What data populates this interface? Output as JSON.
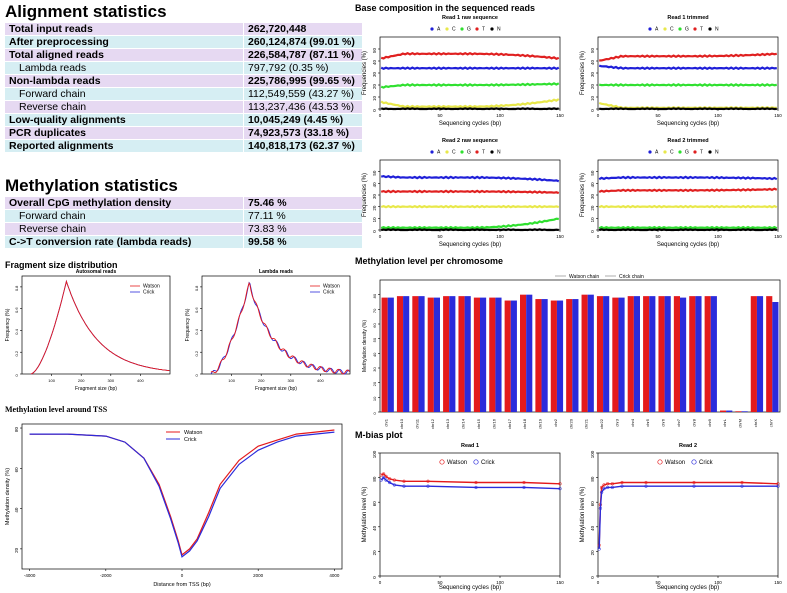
{
  "alignment": {
    "title": "Alignment statistics",
    "rows": [
      {
        "label": "Total input reads",
        "value": "262,720,448",
        "bold": true,
        "sub": false
      },
      {
        "label": "After preprocessing",
        "value": "260,124,874 (99.01 %)",
        "bold": true,
        "sub": false
      },
      {
        "label": "Total aligned reads",
        "value": "226,584,787 (87.11 %)",
        "bold": true,
        "sub": false
      },
      {
        "label": "Lambda reads",
        "value": "797,792 (0.35 %)",
        "bold": false,
        "sub": true
      },
      {
        "label": "Non-lambda reads",
        "value": "225,786,995 (99.65 %)",
        "bold": true,
        "sub": false
      },
      {
        "label": "Forward chain",
        "value": "112,549,559 (43.27 %)",
        "bold": false,
        "sub": true
      },
      {
        "label": "Reverse chain",
        "value": "113,237,436 (43.53 %)",
        "bold": false,
        "sub": true
      },
      {
        "label": "Low-quality alignments",
        "value": "10,045,249 (4.45 %)",
        "bold": true,
        "sub": false
      },
      {
        "label": "PCR duplicates",
        "value": "74,923,573 (33.18 %)",
        "bold": true,
        "sub": false
      },
      {
        "label": "Reported alignments",
        "value": "140,818,173 (62.37 %)",
        "bold": true,
        "sub": false
      }
    ]
  },
  "methylation": {
    "title": "Methylation statistics",
    "rows": [
      {
        "label": "Overall CpG methylation density",
        "value": "75.46 %",
        "bold": true,
        "sub": false
      },
      {
        "label": "Forward chain",
        "value": "77.11 %",
        "bold": false,
        "sub": true
      },
      {
        "label": "Reverse chain",
        "value": "73.83 %",
        "bold": false,
        "sub": true
      },
      {
        "label": "C->T conversion rate (lambda reads)",
        "value": "99.58 %",
        "bold": true,
        "sub": false
      }
    ]
  },
  "colors": {
    "watson": "#e41a1c",
    "crick": "#2b2bdb",
    "A": "#1f1fd8",
    "C": "#e8e84a",
    "G": "#2fe02f",
    "T": "#e02020",
    "N": "#000000",
    "row_purple": "#e6d9f2",
    "row_cyan": "#d6eef3"
  },
  "chart_data": [
    {
      "id": "base_composition",
      "type": "line",
      "title": "Base composition in the sequenced reads",
      "legend": [
        "A",
        "C",
        "G",
        "T",
        "N"
      ],
      "xlabel": "Sequencing cycles (bp)",
      "ylabel": "Frequencies (%)",
      "xlim": [
        0,
        150
      ],
      "ylim": [
        0,
        60
      ],
      "xticks": [
        0,
        50,
        100,
        150
      ],
      "yticks": [
        0,
        10,
        20,
        30,
        40,
        50
      ],
      "panels": [
        {
          "title": "Read 1 raw sequence",
          "series": [
            {
              "name": "A",
              "start": 34,
              "mid": 34,
              "end": 34
            },
            {
              "name": "C",
              "start": 6,
              "mid": 2,
              "end": 8
            },
            {
              "name": "G",
              "start": 18,
              "mid": 20,
              "end": 21
            },
            {
              "name": "T",
              "start": 42,
              "mid": 46,
              "end": 42
            },
            {
              "name": "N",
              "start": 0,
              "mid": 0,
              "end": 0
            }
          ]
        },
        {
          "title": "Read 1 trimmed",
          "series": [
            {
              "name": "A",
              "start": 36,
              "mid": 34,
              "end": 34
            },
            {
              "name": "C",
              "start": 5,
              "mid": 1,
              "end": 1
            },
            {
              "name": "G",
              "start": 20,
              "mid": 20,
              "end": 20
            },
            {
              "name": "T",
              "start": 40,
              "mid": 44,
              "end": 46
            },
            {
              "name": "N",
              "start": 0,
              "mid": 0,
              "end": 0
            }
          ]
        },
        {
          "title": "Read 2 raw sequence",
          "series": [
            {
              "name": "A",
              "start": 46,
              "mid": 45,
              "end": 42
            },
            {
              "name": "C",
              "start": 20,
              "mid": 20,
              "end": 20
            },
            {
              "name": "G",
              "start": 2,
              "mid": 2,
              "end": 10
            },
            {
              "name": "T",
              "start": 33,
              "mid": 33,
              "end": 32
            },
            {
              "name": "N",
              "start": 0,
              "mid": 0,
              "end": 0
            }
          ]
        },
        {
          "title": "Read 2 trimmed",
          "series": [
            {
              "name": "A",
              "start": 44,
              "mid": 45,
              "end": 44
            },
            {
              "name": "C",
              "start": 20,
              "mid": 20,
              "end": 20
            },
            {
              "name": "G",
              "start": 2,
              "mid": 2,
              "end": 2
            },
            {
              "name": "T",
              "start": 33,
              "mid": 34,
              "end": 35
            },
            {
              "name": "N",
              "start": 0,
              "mid": 0,
              "end": 0
            }
          ]
        }
      ]
    },
    {
      "id": "fragment_size",
      "type": "line",
      "title": "Fragment size distribution",
      "xlabel": "Fragment size (bp)",
      "ylabel": "Frequency (%)",
      "legend": [
        "Watson",
        "Crick"
      ],
      "panels": [
        {
          "title": "Autosomal reads",
          "xlim": [
            0,
            500
          ],
          "ylim": [
            0,
            0.9
          ],
          "xticks": [
            100,
            200,
            300,
            400
          ],
          "yticks": [
            0.0,
            0.2,
            0.4,
            0.6,
            0.8
          ],
          "peak_x": 150,
          "peak_y": 0.85
        },
        {
          "title": "Lambda reads",
          "xlim": [
            0,
            500
          ],
          "ylim": [
            0,
            0.9
          ],
          "xticks": [
            100,
            200,
            300,
            400
          ],
          "yticks": [
            0.0,
            0.2,
            0.4,
            0.6,
            0.8
          ],
          "peak_x": 160,
          "peak_y": 0.83
        }
      ]
    },
    {
      "id": "tss",
      "type": "line",
      "title": "Methylation level around TSS",
      "xlabel": "Distance from TSS (bp)",
      "ylabel": "Methylation density (%)",
      "legend": [
        "Watson",
        "Crick"
      ],
      "xlim": [
        -4200,
        4200
      ],
      "ylim": [
        10,
        82
      ],
      "xticks": [
        -4000,
        -2000,
        0,
        2000,
        4000
      ],
      "yticks": [
        20,
        40,
        60,
        80
      ],
      "series": [
        {
          "name": "Watson",
          "x": [
            -4000,
            -3000,
            -2000,
            -1500,
            -1000,
            -600,
            -300,
            -100,
            0,
            200,
            400,
            700,
            1000,
            1500,
            2000,
            2500,
            3000,
            3500,
            4000
          ],
          "y": [
            77,
            77,
            76,
            73,
            65,
            52,
            36,
            24,
            17,
            20,
            25,
            38,
            52,
            64,
            71,
            74,
            77,
            78,
            79
          ]
        },
        {
          "name": "Crick",
          "x": [
            -4000,
            -3000,
            -2000,
            -1500,
            -1000,
            -600,
            -300,
            -100,
            0,
            200,
            400,
            700,
            1000,
            1500,
            2000,
            2500,
            3000,
            3500,
            4000
          ],
          "y": [
            77,
            77,
            76,
            73,
            65,
            51,
            35,
            23,
            16,
            19,
            24,
            36,
            50,
            62,
            69,
            73,
            76,
            77,
            78
          ]
        }
      ]
    },
    {
      "id": "chromosome",
      "type": "bar",
      "title": "Methylation level per chromosome",
      "legend": [
        "Watson chain",
        "Crick chain"
      ],
      "ylabel": "Methylation density (%)",
      "ylim": [
        0,
        90
      ],
      "yticks": [
        0,
        10,
        20,
        30,
        40,
        50,
        60,
        70,
        80
      ],
      "categories": [
        "chr1",
        "chr10",
        "chr11",
        "chr12",
        "chr13",
        "chr14",
        "chr15",
        "chr16",
        "chr17",
        "chr18",
        "chr19",
        "chr2",
        "chr20",
        "chr21",
        "chr22",
        "chr3",
        "chr4",
        "chr5",
        "chr6",
        "chr7",
        "chr8",
        "chr9",
        "chrL",
        "chrM",
        "chrX",
        "chrY"
      ],
      "series": [
        {
          "name": "Watson chain",
          "values": [
            78,
            79,
            79,
            78,
            79,
            79,
            78,
            78,
            76,
            80,
            77,
            76,
            77,
            80,
            79,
            78,
            79,
            79,
            79,
            79,
            79,
            79,
            1,
            0.5,
            79,
            79
          ]
        },
        {
          "name": "Crick chain",
          "values": [
            78,
            79,
            79,
            78,
            79,
            79,
            78,
            78,
            76,
            80,
            77,
            76,
            77,
            80,
            79,
            78,
            79,
            79,
            79,
            78,
            79,
            79,
            1,
            0.5,
            79,
            75
          ]
        }
      ]
    },
    {
      "id": "mbias",
      "type": "line",
      "title": "M-bias plot",
      "legend": [
        "Watson",
        "Crick"
      ],
      "xlabel": "Sequencing cycles (bp)",
      "ylabel": "Methylation level (%)",
      "xlim": [
        0,
        150
      ],
      "ylim": [
        0,
        100
      ],
      "xticks": [
        0,
        50,
        100,
        150
      ],
      "yticks": [
        0,
        20,
        40,
        60,
        80,
        100
      ],
      "panels": [
        {
          "title": "Read 1",
          "series": [
            {
              "name": "Watson",
              "x": [
                1,
                3,
                5,
                8,
                12,
                20,
                40,
                80,
                120,
                150
              ],
              "y": [
                82,
                83,
                81,
                79,
                78,
                77,
                77,
                76,
                76,
                75
              ]
            },
            {
              "name": "Crick",
              "x": [
                1,
                3,
                5,
                8,
                12,
                20,
                40,
                80,
                120,
                150
              ],
              "y": [
                78,
                80,
                78,
                76,
                74,
                73,
                73,
                72,
                72,
                71
              ]
            }
          ]
        },
        {
          "title": "Read 2",
          "series": [
            {
              "name": "Watson",
              "x": [
                1,
                2,
                3,
                5,
                8,
                12,
                20,
                40,
                80,
                120,
                150
              ],
              "y": [
                25,
                58,
                72,
                74,
                75,
                75,
                76,
                76,
                76,
                76,
                75
              ]
            },
            {
              "name": "Crick",
              "x": [
                1,
                2,
                3,
                5,
                8,
                12,
                20,
                40,
                80,
                120,
                150
              ],
              "y": [
                22,
                55,
                68,
                71,
                72,
                72,
                73,
                73,
                73,
                73,
                73
              ]
            }
          ]
        }
      ]
    }
  ]
}
